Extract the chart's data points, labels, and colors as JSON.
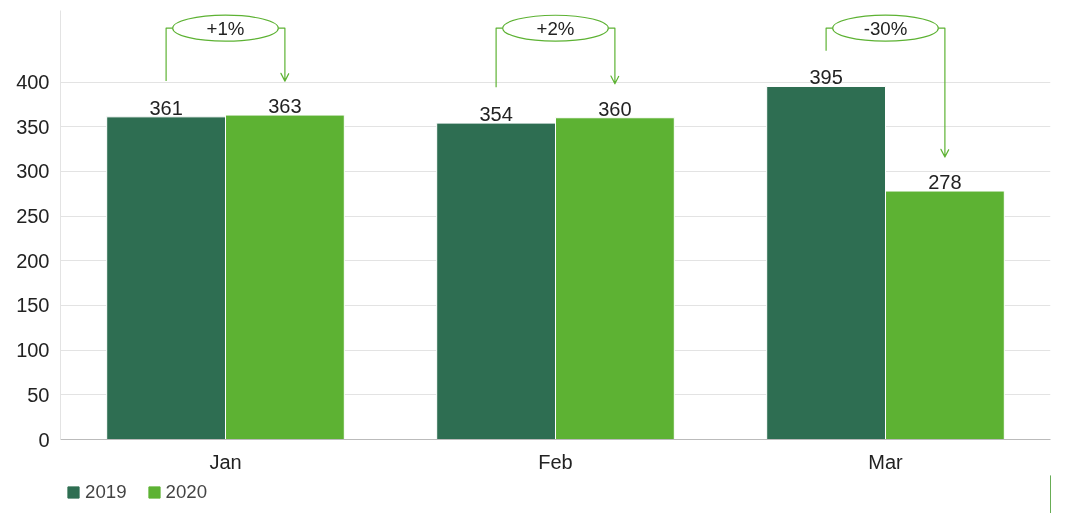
{
  "chart_data": {
    "type": "bar",
    "categories": [
      "Jan",
      "Feb",
      "Mar"
    ],
    "series": [
      {
        "name": "2019",
        "color": "#2e6e52",
        "values": [
          361,
          354,
          395
        ]
      },
      {
        "name": "2020",
        "color": "#5db233",
        "values": [
          363,
          360,
          278
        ]
      }
    ],
    "ylim": [
      0,
      480
    ],
    "yticks": [
      0,
      50,
      100,
      150,
      200,
      250,
      300,
      350,
      400
    ],
    "grid": "y",
    "legend": "bottom left",
    "data_labels": true,
    "annotations": [
      "+1%",
      "+2%",
      "-30%"
    ]
  }
}
